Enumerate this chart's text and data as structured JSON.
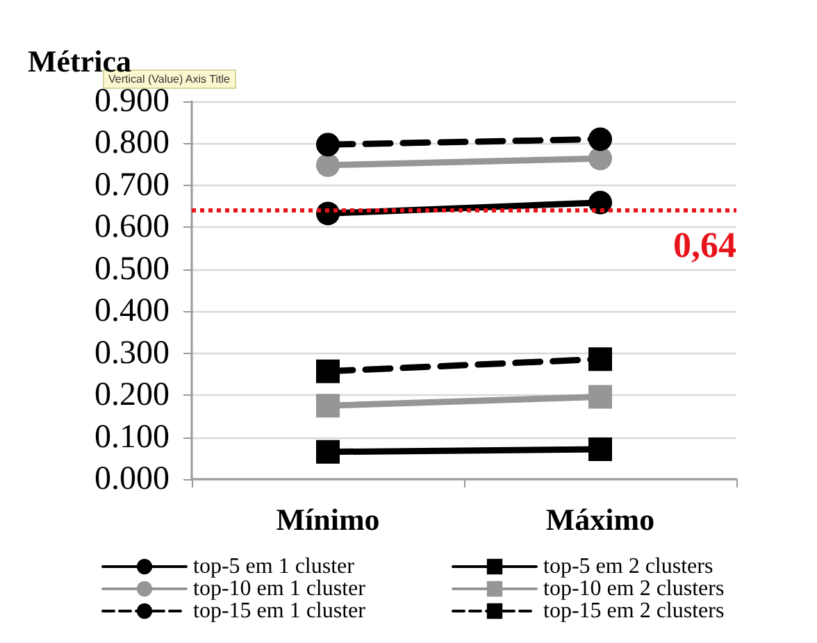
{
  "chart_data": {
    "type": "line",
    "ylabel": "Métrica",
    "annotations": [
      "Vertical (Value) Axis Title"
    ],
    "categories": [
      "Mínimo",
      "Máximo"
    ],
    "series": [
      {
        "name": "top-5 em 1 cluster",
        "color": "#000000",
        "values": [
          0.633,
          0.659
        ],
        "marker": "circle",
        "line_style": "solid"
      },
      {
        "name": "top-10 em 1 cluster",
        "color": "#969696",
        "values": [
          0.748,
          0.764
        ],
        "marker": "circle",
        "line_style": "solid"
      },
      {
        "name": "top-15 em 1 cluster",
        "color": "#000000",
        "values": [
          0.797,
          0.81
        ],
        "marker": "circle",
        "line_style": "dashed"
      },
      {
        "name": "top-5 em 2 clusters",
        "color": "#000000",
        "values": [
          0.065,
          0.071
        ],
        "marker": "square",
        "line_style": "solid"
      },
      {
        "name": "top-10 em 2 clusters",
        "color": "#969696",
        "values": [
          0.175,
          0.196
        ],
        "marker": "square",
        "line_style": "solid"
      },
      {
        "name": "top-15 em 2 clusters",
        "color": "#000000",
        "values": [
          0.257,
          0.286
        ],
        "marker": "square",
        "line_style": "dashed"
      }
    ],
    "ylim": [
      0,
      0.9
    ],
    "yticks": [
      {
        "value": 0,
        "label": "0.000"
      },
      {
        "value": 0.1,
        "label": "0.100"
      },
      {
        "value": 0.2,
        "label": "0.200"
      },
      {
        "value": 0.3,
        "label": "0.300"
      },
      {
        "value": 0.4,
        "label": "0.400"
      },
      {
        "value": 0.5,
        "label": "0.500"
      },
      {
        "value": 0.6,
        "label": "0.600"
      },
      {
        "value": 0.7,
        "label": "0.700"
      },
      {
        "value": 0.8,
        "label": "0.800"
      },
      {
        "value": 0.9,
        "label": "0.900"
      }
    ],
    "ref_lines": [
      {
        "axis": "y",
        "value": 0.64,
        "label": "0,64",
        "color": "#e8141c",
        "line_style": "dotted"
      }
    ],
    "grid": "y",
    "legend": "bottom"
  }
}
